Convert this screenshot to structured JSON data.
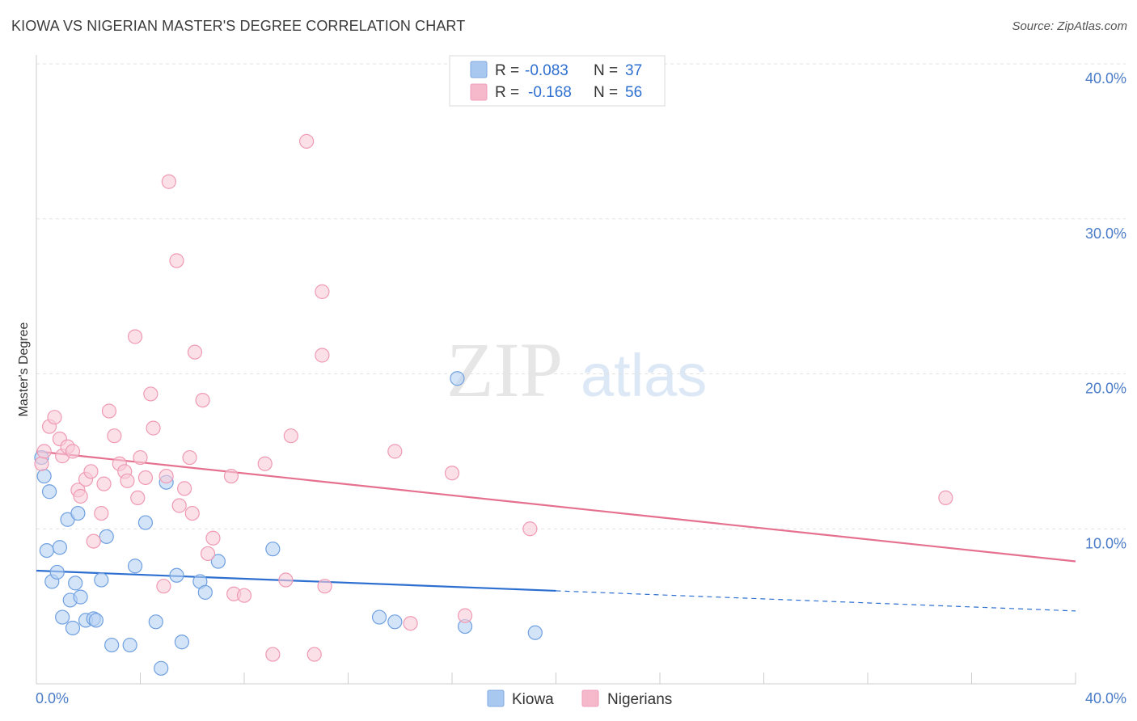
{
  "title": "KIOWA VS NIGERIAN MASTER'S DEGREE CORRELATION CHART",
  "source": "Source: ZipAtlas.com",
  "watermark": {
    "zip": "ZIP",
    "atlas": "atlas"
  },
  "legend": {
    "rows": [
      {
        "r_label": "R =",
        "r_value": "-0.083",
        "n_label": "N =",
        "n_value": "37",
        "color": "#a8c8f0"
      },
      {
        "r_label": "R =",
        "r_value": "-0.168",
        "n_label": "N =",
        "n_value": "56",
        "color": "#f6b8cb"
      }
    ]
  },
  "bottom_legend": [
    {
      "label": "Kiowa",
      "color": "#a8c8f0"
    },
    {
      "label": "Nigerians",
      "color": "#f6b8cb"
    }
  ],
  "chart_data": {
    "type": "scatter",
    "title": "KIOWA VS NIGERIAN MASTER'S DEGREE CORRELATION CHART",
    "xlabel": "",
    "ylabel": "Master's Degree",
    "xlim": [
      0,
      40
    ],
    "ylim": [
      0,
      40
    ],
    "x_tick_labels": [
      "0.0%",
      "40.0%"
    ],
    "y_tick_labels": [
      "10.0%",
      "20.0%",
      "30.0%",
      "40.0%"
    ],
    "y_tick_values": [
      10,
      20,
      30,
      40
    ],
    "series": [
      {
        "name": "Kiowa",
        "color": "#6fa0e0",
        "fill": "#b7d2f3",
        "trend": {
          "x0": 0,
          "y0": 7.3,
          "x1": 20,
          "y1": 6.0,
          "dash_to_x": 40,
          "dash_to_y": 4.7,
          "color": "#2d6fd0"
        },
        "points": [
          [
            0.2,
            14.6
          ],
          [
            0.3,
            13.4
          ],
          [
            0.5,
            12.4
          ],
          [
            0.4,
            8.6
          ],
          [
            0.6,
            6.6
          ],
          [
            0.8,
            7.2
          ],
          [
            0.9,
            8.8
          ],
          [
            1.0,
            4.3
          ],
          [
            1.2,
            10.6
          ],
          [
            1.3,
            5.4
          ],
          [
            1.4,
            3.6
          ],
          [
            1.5,
            6.5
          ],
          [
            1.6,
            11.0
          ],
          [
            1.7,
            5.6
          ],
          [
            1.9,
            4.1
          ],
          [
            2.2,
            4.2
          ],
          [
            2.3,
            4.1
          ],
          [
            2.5,
            6.7
          ],
          [
            2.7,
            9.5
          ],
          [
            2.9,
            2.5
          ],
          [
            3.6,
            2.5
          ],
          [
            3.8,
            7.6
          ],
          [
            4.2,
            10.4
          ],
          [
            4.6,
            4.0
          ],
          [
            4.8,
            1.0
          ],
          [
            5.0,
            13.0
          ],
          [
            5.4,
            7.0
          ],
          [
            5.6,
            2.7
          ],
          [
            6.3,
            6.6
          ],
          [
            6.5,
            5.9
          ],
          [
            7.0,
            7.9
          ],
          [
            9.1,
            8.7
          ],
          [
            13.2,
            4.3
          ],
          [
            13.8,
            4.0
          ],
          [
            16.2,
            19.7
          ],
          [
            16.5,
            3.7
          ],
          [
            19.2,
            3.3
          ]
        ]
      },
      {
        "name": "Nigerians",
        "color": "#ef9ab4",
        "fill": "#f9cbd8",
        "trend": {
          "x0": 0,
          "y0": 15.0,
          "x1": 40,
          "y1": 7.9,
          "color": "#e5708f"
        },
        "points": [
          [
            0.2,
            14.2
          ],
          [
            0.3,
            15.0
          ],
          [
            0.5,
            16.6
          ],
          [
            0.7,
            17.2
          ],
          [
            0.9,
            15.8
          ],
          [
            1.0,
            14.7
          ],
          [
            1.2,
            15.3
          ],
          [
            1.4,
            15.0
          ],
          [
            1.6,
            12.5
          ],
          [
            1.7,
            12.1
          ],
          [
            1.9,
            13.2
          ],
          [
            2.1,
            13.7
          ],
          [
            2.2,
            9.2
          ],
          [
            2.5,
            11.0
          ],
          [
            2.6,
            12.9
          ],
          [
            2.8,
            17.6
          ],
          [
            3.0,
            16.0
          ],
          [
            3.2,
            14.2
          ],
          [
            3.4,
            13.7
          ],
          [
            3.5,
            13.1
          ],
          [
            3.8,
            22.4
          ],
          [
            3.9,
            12.0
          ],
          [
            4.0,
            14.6
          ],
          [
            4.2,
            13.3
          ],
          [
            4.4,
            18.7
          ],
          [
            4.5,
            16.5
          ],
          [
            4.9,
            6.3
          ],
          [
            5.0,
            13.4
          ],
          [
            5.1,
            32.4
          ],
          [
            5.4,
            27.3
          ],
          [
            5.5,
            11.5
          ],
          [
            5.7,
            12.6
          ],
          [
            5.9,
            14.6
          ],
          [
            6.0,
            11.0
          ],
          [
            6.1,
            21.4
          ],
          [
            6.4,
            18.3
          ],
          [
            6.6,
            8.4
          ],
          [
            6.8,
            9.4
          ],
          [
            7.5,
            13.4
          ],
          [
            7.6,
            5.8
          ],
          [
            8.0,
            5.7
          ],
          [
            8.8,
            14.2
          ],
          [
            9.1,
            1.9
          ],
          [
            9.6,
            6.7
          ],
          [
            9.8,
            16.0
          ],
          [
            10.4,
            35.0
          ],
          [
            10.7,
            1.9
          ],
          [
            11.0,
            21.2
          ],
          [
            11.0,
            25.3
          ],
          [
            11.1,
            6.3
          ],
          [
            13.8,
            15.0
          ],
          [
            14.4,
            3.9
          ],
          [
            16.0,
            13.6
          ],
          [
            16.5,
            4.4
          ],
          [
            19.0,
            10.0
          ],
          [
            35.0,
            12.0
          ]
        ]
      }
    ]
  }
}
